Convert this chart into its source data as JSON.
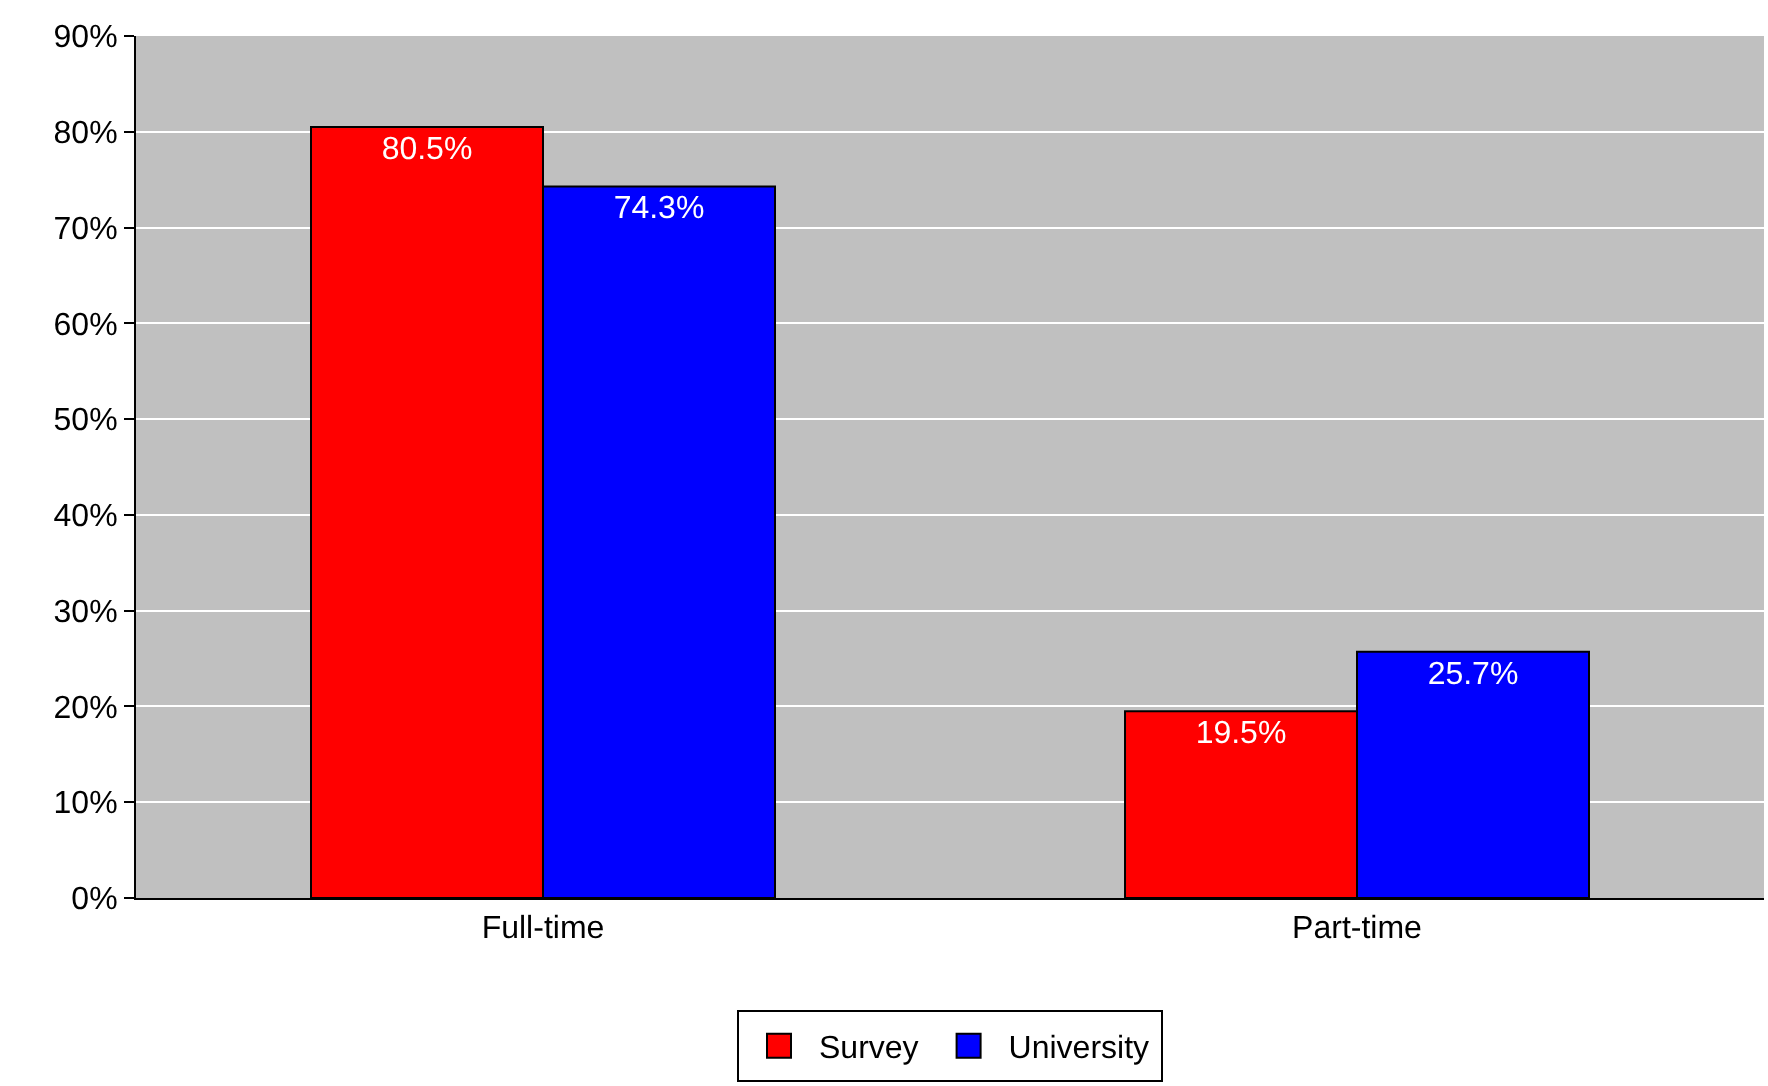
{
  "chart_data": {
    "type": "bar",
    "categories": [
      "Full-time",
      "Part-time"
    ],
    "series": [
      {
        "name": "Survey",
        "color": "#ff0000",
        "values": [
          80.5,
          19.5
        ],
        "value_labels": [
          "80.5%",
          "19.5%"
        ]
      },
      {
        "name": "University",
        "color": "#0000ff",
        "values": [
          74.3,
          25.7
        ],
        "value_labels": [
          "74.3%",
          "25.7%"
        ]
      }
    ],
    "ylim": [
      0,
      90
    ],
    "yticks": [
      {
        "value": 0,
        "label": "0%"
      },
      {
        "value": 10,
        "label": "10%"
      },
      {
        "value": 20,
        "label": "20%"
      },
      {
        "value": 30,
        "label": "30%"
      },
      {
        "value": 40,
        "label": "40%"
      },
      {
        "value": 50,
        "label": "50%"
      },
      {
        "value": 60,
        "label": "60%"
      },
      {
        "value": 70,
        "label": "70%"
      },
      {
        "value": 80,
        "label": "80%"
      },
      {
        "value": 90,
        "label": "90%"
      }
    ],
    "grid": "y",
    "legend": "bottom"
  }
}
